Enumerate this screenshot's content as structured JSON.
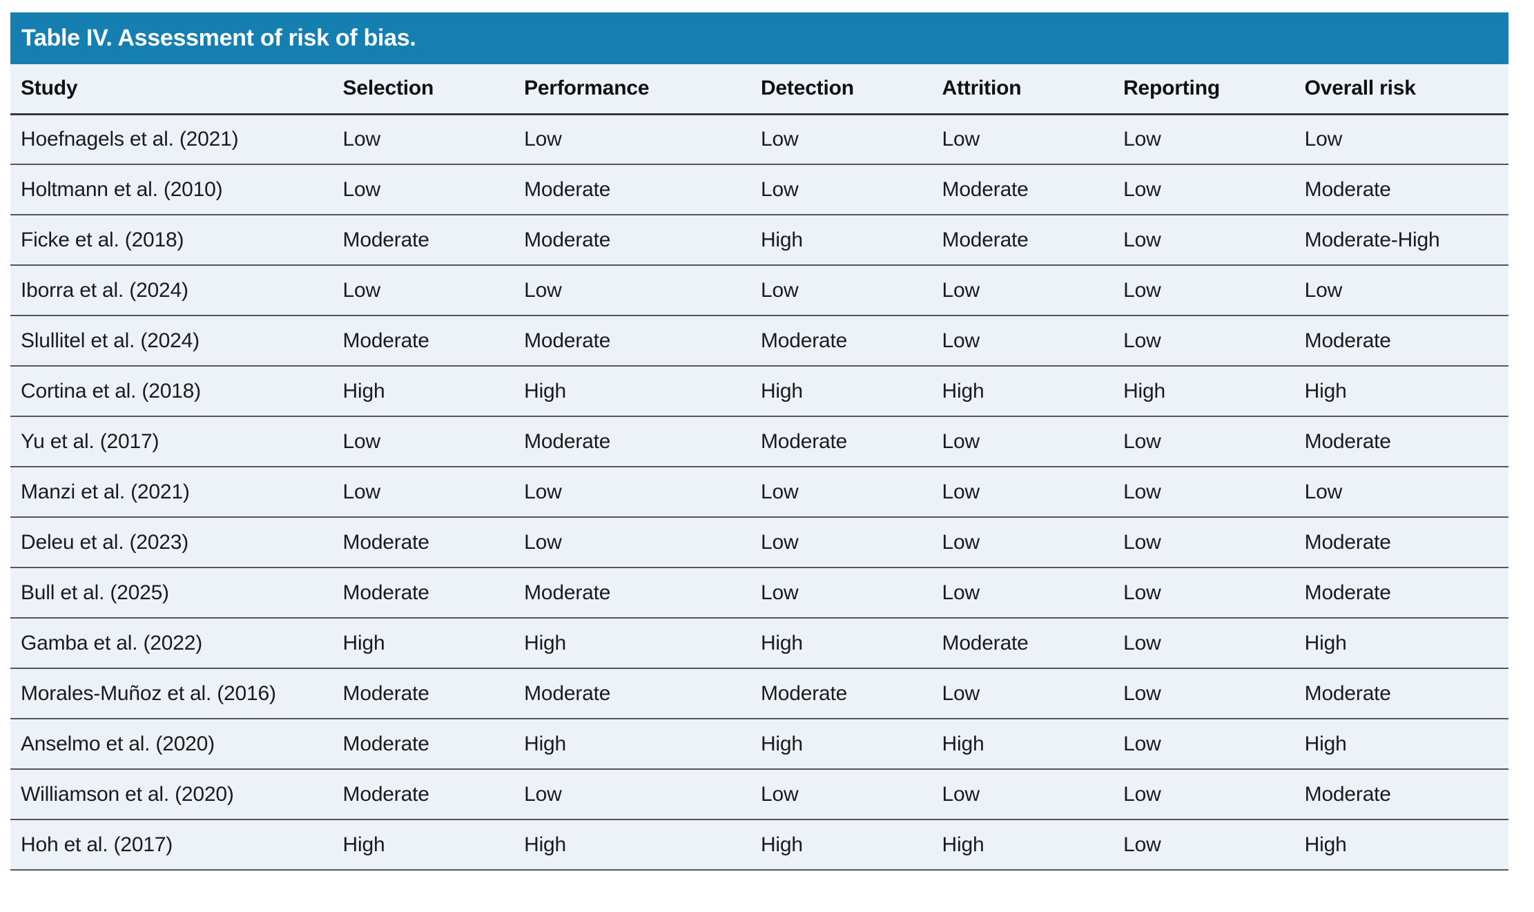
{
  "title": "Table IV. Assessment of risk of bias.",
  "colors": {
    "accent": "#147fb0",
    "row_bg": "#edf1f8",
    "divider": "#53575c",
    "header_divider": "#35393e",
    "title_text": "#ffffff",
    "body_text": "#1b1b1b"
  },
  "table": {
    "columns": [
      {
        "key": "study",
        "label": "Study"
      },
      {
        "key": "selection",
        "label": "Selection"
      },
      {
        "key": "performance",
        "label": "Performance"
      },
      {
        "key": "detection",
        "label": "Detection"
      },
      {
        "key": "attrition",
        "label": "Attrition"
      },
      {
        "key": "reporting",
        "label": "Reporting"
      },
      {
        "key": "overall",
        "label": "Overall risk"
      }
    ],
    "rows": [
      {
        "study": "Hoefnagels et al. (2021)",
        "selection": "Low",
        "performance": "Low",
        "detection": "Low",
        "attrition": "Low",
        "reporting": "Low",
        "overall": "Low"
      },
      {
        "study": "Holtmann et al. (2010)",
        "selection": "Low",
        "performance": "Moderate",
        "detection": "Low",
        "attrition": "Moderate",
        "reporting": "Low",
        "overall": "Moderate"
      },
      {
        "study": "Ficke et al. (2018)",
        "selection": "Moderate",
        "performance": "Moderate",
        "detection": "High",
        "attrition": "Moderate",
        "reporting": "Low",
        "overall": "Moderate-High"
      },
      {
        "study": "Iborra et al. (2024)",
        "selection": "Low",
        "performance": "Low",
        "detection": "Low",
        "attrition": "Low",
        "reporting": "Low",
        "overall": "Low"
      },
      {
        "study": "Slullitel et al. (2024)",
        "selection": "Moderate",
        "performance": "Moderate",
        "detection": "Moderate",
        "attrition": "Low",
        "reporting": "Low",
        "overall": "Moderate"
      },
      {
        "study": "Cortina et al. (2018)",
        "selection": "High",
        "performance": "High",
        "detection": "High",
        "attrition": "High",
        "reporting": "High",
        "overall": "High"
      },
      {
        "study": "Yu et al. (2017)",
        "selection": "Low",
        "performance": "Moderate",
        "detection": "Moderate",
        "attrition": "Low",
        "reporting": "Low",
        "overall": "Moderate"
      },
      {
        "study": "Manzi et al. (2021)",
        "selection": "Low",
        "performance": "Low",
        "detection": "Low",
        "attrition": "Low",
        "reporting": "Low",
        "overall": "Low"
      },
      {
        "study": "Deleu et al. (2023)",
        "selection": "Moderate",
        "performance": "Low",
        "detection": "Low",
        "attrition": "Low",
        "reporting": "Low",
        "overall": "Moderate"
      },
      {
        "study": "Bull et al. (2025)",
        "selection": "Moderate",
        "performance": "Moderate",
        "detection": "Low",
        "attrition": "Low",
        "reporting": "Low",
        "overall": "Moderate"
      },
      {
        "study": "Gamba et al. (2022)",
        "selection": "High",
        "performance": "High",
        "detection": "High",
        "attrition": "Moderate",
        "reporting": "Low",
        "overall": "High"
      },
      {
        "study": "Morales-Muñoz et al. (2016)",
        "selection": "Moderate",
        "performance": "Moderate",
        "detection": "Moderate",
        "attrition": "Low",
        "reporting": "Low",
        "overall": "Moderate"
      },
      {
        "study": "Anselmo et al. (2020)",
        "selection": "Moderate",
        "performance": "High",
        "detection": "High",
        "attrition": "High",
        "reporting": "Low",
        "overall": "High"
      },
      {
        "study": "Williamson et al. (2020)",
        "selection": "Moderate",
        "performance": "Low",
        "detection": "Low",
        "attrition": "Low",
        "reporting": "Low",
        "overall": "Moderate"
      },
      {
        "study": "Hoh et al. (2017)",
        "selection": "High",
        "performance": "High",
        "detection": "High",
        "attrition": "High",
        "reporting": "Low",
        "overall": "High"
      }
    ],
    "column_widths": [
      "21.5%",
      "12.1%",
      "15.8%",
      "12.1%",
      "12.1%",
      "12.1%",
      "14.3%"
    ]
  }
}
